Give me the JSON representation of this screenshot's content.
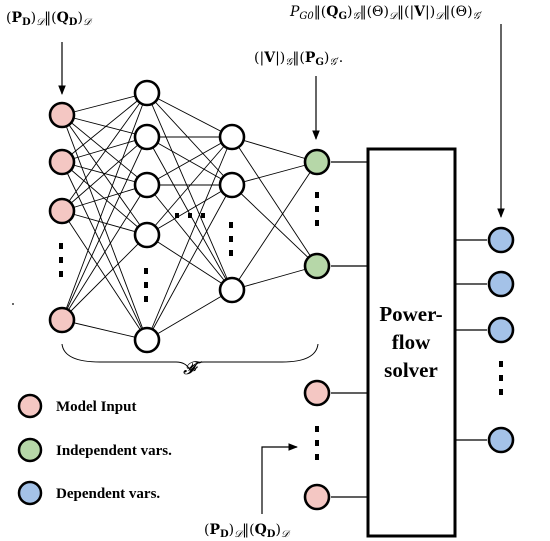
{
  "labels": {
    "model_input_top": "(P_D)_𝒟‖(Q_D)_𝒟",
    "independent_top": "(|V|)_𝒢‖(P_G)_𝒢′.",
    "dependent_top": "P_G0‖(Q_G)_𝒢‖(Θ)_𝒟‖(|V|)_𝒟‖(Θ)_𝒢′",
    "model_input_bottom": "(P_D)_𝒟‖(Q_D)_𝒟",
    "network_symbol": "𝓕",
    "solver_line1": "Power-",
    "solver_line2": "flow",
    "solver_line3": "solver"
  },
  "legend": [
    {
      "label": "Model Input",
      "color": "#f4c7c3"
    },
    {
      "label": "Independent vars.",
      "color": "#b6d7a8"
    },
    {
      "label": "Dependent vars.",
      "color": "#a4c2e8"
    }
  ],
  "colors": {
    "model_input": "#f4c7c3",
    "independent": "#b6d7a8",
    "dependent": "#a4c2e8",
    "hidden": "#ffffff",
    "stroke": "#000000"
  }
}
